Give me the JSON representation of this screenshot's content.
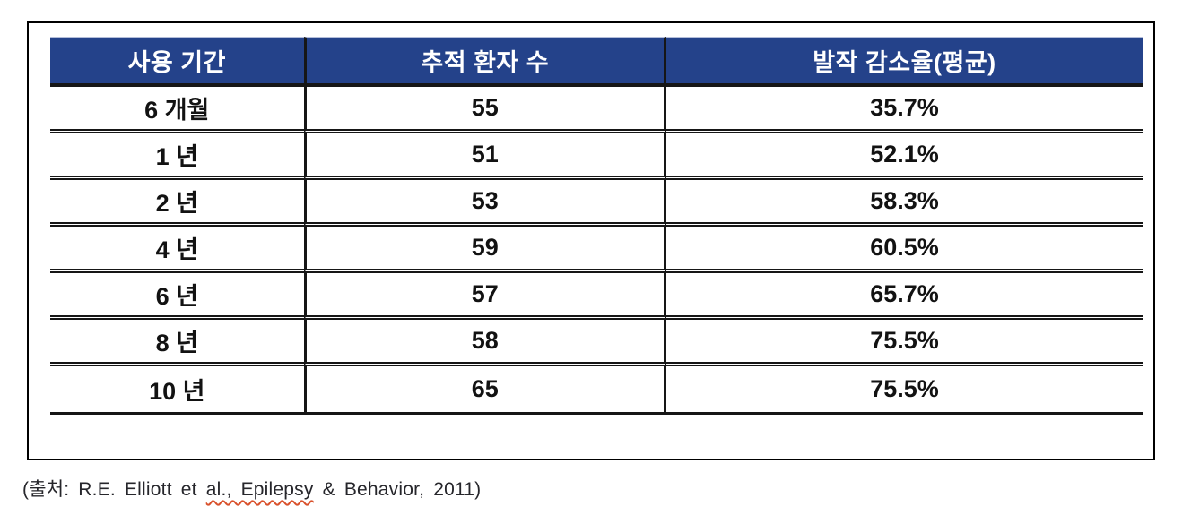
{
  "colors": {
    "header_bg": "#24428a",
    "header_text": "#ffffff",
    "body_text": "#121212",
    "border_dark": "#161616",
    "frame_border": "#000000",
    "squiggle": "#d9512c",
    "footer_text": "#26262b"
  },
  "table": {
    "columns": [
      {
        "label": "사용 기간"
      },
      {
        "label": "추적 환자 수"
      },
      {
        "label": "발작 감소율(평균)"
      }
    ],
    "rows": [
      {
        "period": "6 개월",
        "patients": "55",
        "reduction": "35.7%"
      },
      {
        "period": "1 년",
        "patients": "51",
        "reduction": "52.1%"
      },
      {
        "period": "2 년",
        "patients": "53",
        "reduction": "58.3%"
      },
      {
        "period": "4 년",
        "patients": "59",
        "reduction": "60.5%"
      },
      {
        "period": "6 년",
        "patients": "57",
        "reduction": "65.7%"
      },
      {
        "period": "8 년",
        "patients": "58",
        "reduction": "75.5%"
      },
      {
        "period": "10 년",
        "patients": "65",
        "reduction": "75.5%"
      }
    ]
  },
  "footer": {
    "prefix": "(출처: R.E. Elliott et ",
    "flagged": "al., Epilepsy",
    "suffix": " & Behavior, 2011)"
  },
  "chart_data": {
    "type": "table",
    "title": "",
    "columns": [
      "사용 기간",
      "추적 환자 수",
      "발작 감소율(평균)"
    ],
    "rows": [
      [
        "6 개월",
        55,
        "35.7%"
      ],
      [
        "1 년",
        51,
        "52.1%"
      ],
      [
        "2 년",
        53,
        "58.3%"
      ],
      [
        "4 년",
        59,
        "60.5%"
      ],
      [
        "6 년",
        57,
        "65.7%"
      ],
      [
        "8 년",
        58,
        "75.5%"
      ],
      [
        "10 년",
        65,
        "75.5%"
      ]
    ],
    "source": "(출처: R.E. Elliott et al., Epilepsy & Behavior, 2011)"
  }
}
